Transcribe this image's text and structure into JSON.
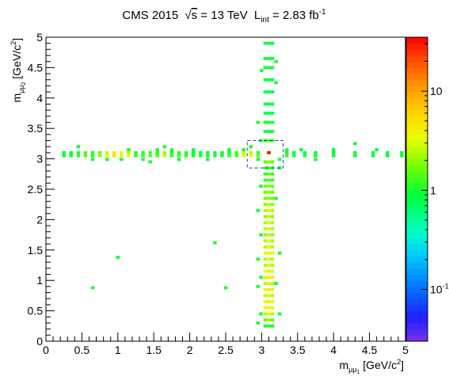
{
  "chart_data": {
    "type": "heatmap",
    "title": {
      "experiment": "CMS 2015",
      "sqrt_s_symbol": "√",
      "sqrt_s_var": "s",
      "energy": " = 13 TeV",
      "lumi_symbol": "L",
      "lumi_sub": "int",
      "lumi_value": " = 2.83 fb",
      "lumi_sup": "-1"
    },
    "xlabel": {
      "main": "m",
      "sub": "μμ",
      "subsub": "1",
      "unit": " [GeV/c",
      "unit_sup": "2",
      "unit_end": "]"
    },
    "ylabel": {
      "main": "m",
      "sub": "μμ",
      "subsub": "2",
      "unit": " [GeV/c",
      "unit_sup": "2",
      "unit_end": "]"
    },
    "xlim": [
      0,
      5
    ],
    "ylim": [
      0,
      5
    ],
    "x_ticks": [
      "0",
      "0.5",
      "1",
      "1.5",
      "2",
      "2.5",
      "3",
      "3.5",
      "4",
      "4.5",
      "5"
    ],
    "y_ticks": [
      "0",
      "0.5",
      "1",
      "1.5",
      "2",
      "2.5",
      "3",
      "3.5",
      "4",
      "4.5",
      "5"
    ],
    "z_scale": "log",
    "zlim": [
      0.03,
      35
    ],
    "z_ticks": [
      {
        "value": 10,
        "label": "10"
      },
      {
        "value": 1,
        "label": "1"
      },
      {
        "value": 0.1,
        "label": "10",
        "sup": "-1"
      }
    ],
    "signal_box": {
      "x": [
        2.8,
        3.3
      ],
      "y": [
        2.85,
        3.3
      ],
      "style": "dashed",
      "color": "#1f3fbf"
    },
    "horizontal_band": {
      "y_values": [
        3.05,
        3.1
      ],
      "points": [
        [
          0.25,
          1
        ],
        [
          0.35,
          1
        ],
        [
          0.45,
          1.2
        ],
        [
          0.55,
          1.5
        ],
        [
          0.65,
          1.3
        ],
        [
          0.75,
          2
        ],
        [
          0.85,
          3
        ],
        [
          0.95,
          5
        ],
        [
          1.05,
          4
        ],
        [
          1.15,
          3
        ],
        [
          1.25,
          1.2
        ],
        [
          1.35,
          1.3
        ],
        [
          1.45,
          1.5
        ],
        [
          1.55,
          1.4
        ],
        [
          1.65,
          2.5
        ],
        [
          1.75,
          1.2
        ],
        [
          1.85,
          1.3
        ],
        [
          1.95,
          1.2
        ],
        [
          2.05,
          1
        ],
        [
          2.15,
          1
        ],
        [
          2.25,
          1.1
        ],
        [
          2.35,
          1
        ],
        [
          2.45,
          1
        ],
        [
          2.55,
          1.2
        ],
        [
          2.65,
          1.4
        ],
        [
          2.75,
          3
        ],
        [
          2.85,
          3
        ],
        [
          2.95,
          1.5
        ],
        [
          3.35,
          1.2
        ],
        [
          3.45,
          1
        ],
        [
          3.6,
          1
        ],
        [
          3.75,
          1
        ],
        [
          4.0,
          1
        ],
        [
          4.3,
          1
        ],
        [
          4.55,
          1
        ],
        [
          4.75,
          1
        ],
        [
          4.95,
          1
        ]
      ],
      "extra": [
        [
          0.45,
          3.2,
          1
        ],
        [
          0.65,
          2.99,
          1
        ],
        [
          0.85,
          2.99,
          1
        ],
        [
          1.05,
          2.99,
          1
        ],
        [
          1.15,
          3.15,
          1
        ],
        [
          1.35,
          2.99,
          1
        ],
        [
          1.45,
          2.95,
          1
        ],
        [
          1.55,
          3.15,
          1
        ],
        [
          1.65,
          3.2,
          1
        ],
        [
          1.75,
          3.15,
          1
        ],
        [
          1.85,
          2.99,
          1
        ],
        [
          2.05,
          3.15,
          1
        ],
        [
          2.25,
          2.99,
          1
        ],
        [
          2.55,
          3.15,
          1
        ],
        [
          2.75,
          3.15,
          1
        ],
        [
          2.85,
          3.2,
          1
        ],
        [
          2.95,
          2.99,
          1
        ],
        [
          3.25,
          2.99,
          1
        ],
        [
          3.35,
          3.15,
          1
        ],
        [
          3.55,
          3.15,
          1
        ],
        [
          3.75,
          2.99,
          1
        ],
        [
          4.0,
          3.15,
          1
        ],
        [
          4.3,
          3.25,
          1
        ],
        [
          4.6,
          3.15,
          1
        ]
      ]
    },
    "vertical_band": {
      "x_values": [
        3.05,
        3.1,
        3.15
      ],
      "points": [
        [
          0.25,
          1.2
        ],
        [
          0.35,
          2
        ],
        [
          0.45,
          3
        ],
        [
          0.55,
          4
        ],
        [
          0.65,
          4
        ],
        [
          0.75,
          3
        ],
        [
          0.85,
          4
        ],
        [
          0.95,
          3
        ],
        [
          1.05,
          5
        ],
        [
          1.15,
          4
        ],
        [
          1.25,
          3
        ],
        [
          1.35,
          3
        ],
        [
          1.45,
          4
        ],
        [
          1.55,
          3
        ],
        [
          1.65,
          3
        ],
        [
          1.75,
          2.5
        ],
        [
          1.85,
          3
        ],
        [
          1.95,
          3
        ],
        [
          2.05,
          2.5
        ],
        [
          2.15,
          3
        ],
        [
          2.25,
          2.5
        ],
        [
          2.35,
          2
        ],
        [
          2.45,
          2
        ],
        [
          2.55,
          2
        ],
        [
          2.65,
          1.5
        ],
        [
          2.75,
          1.5
        ],
        [
          2.85,
          1.5
        ],
        [
          2.95,
          2
        ],
        [
          3.3,
          1.5
        ],
        [
          3.45,
          1
        ],
        [
          3.6,
          1.2
        ],
        [
          3.75,
          1
        ],
        [
          3.9,
          1
        ],
        [
          4.1,
          1
        ],
        [
          4.3,
          1
        ],
        [
          4.5,
          1
        ],
        [
          4.65,
          1
        ],
        [
          4.9,
          1
        ]
      ],
      "extra": [
        [
          2.95,
          0.3,
          1
        ],
        [
          2.99,
          0.45,
          1
        ],
        [
          2.95,
          0.9,
          1
        ],
        [
          2.99,
          1.05,
          1
        ],
        [
          2.95,
          1.35,
          1
        ],
        [
          2.99,
          1.75,
          1
        ],
        [
          2.95,
          2.15,
          1
        ],
        [
          2.99,
          2.55,
          1
        ],
        [
          3.25,
          0.45,
          1
        ],
        [
          3.2,
          0.95,
          1
        ],
        [
          3.25,
          1.45,
          1
        ],
        [
          3.2,
          2.35,
          1
        ],
        [
          3.25,
          2.85,
          1
        ],
        [
          2.99,
          3.3,
          1
        ],
        [
          3.2,
          4.25,
          1
        ],
        [
          3.0,
          4.45,
          1
        ],
        [
          3.2,
          4.6,
          1
        ],
        [
          2.95,
          3.6,
          1
        ]
      ]
    },
    "center_cell": [
      3.1,
      3.1,
      32
    ],
    "isolated_points": [
      [
        0.65,
        0.88,
        1
      ],
      [
        1.0,
        1.38,
        1
      ],
      [
        2.35,
        1.62,
        1
      ],
      [
        2.5,
        0.88,
        1
      ]
    ],
    "cell_size": 0.05
  }
}
